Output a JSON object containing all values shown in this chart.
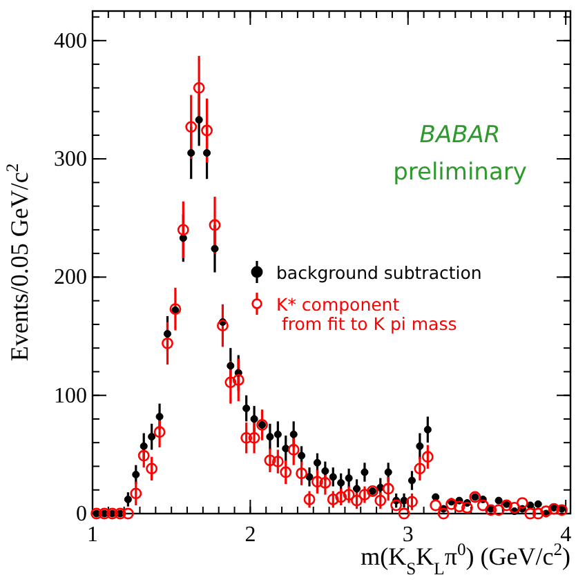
{
  "chart_data": {
    "type": "scatter",
    "xlabel": "m(K$_{S}$K$_{L}$π$^{0}$) (GeV/c$^{2}$)",
    "ylabel": "Events/0.05 GeV/c$^{2}$",
    "x": [
      1.025,
      1.075,
      1.125,
      1.175,
      1.225,
      1.275,
      1.325,
      1.375,
      1.425,
      1.475,
      1.525,
      1.575,
      1.625,
      1.675,
      1.725,
      1.775,
      1.825,
      1.875,
      1.925,
      1.975,
      2.025,
      2.075,
      2.125,
      2.175,
      2.225,
      2.275,
      2.325,
      2.375,
      2.425,
      2.475,
      2.525,
      2.575,
      2.625,
      2.675,
      2.725,
      2.775,
      2.825,
      2.875,
      2.925,
      2.975,
      3.025,
      3.075,
      3.125,
      3.175,
      3.225,
      3.275,
      3.325,
      3.375,
      3.425,
      3.475,
      3.525,
      3.575,
      3.625,
      3.675,
      3.725,
      3.775,
      3.825,
      3.875,
      3.925,
      3.975
    ],
    "series": [
      {
        "name": "background subtraction",
        "color": "#000000",
        "marker": "circle",
        "values": [
          0,
          0,
          0,
          0,
          12,
          33,
          57,
          65,
          82,
          152,
          172,
          233,
          305,
          333,
          305,
          224,
          162,
          125,
          119,
          89,
          80,
          75,
          65,
          67,
          55,
          67,
          49,
          31,
          43,
          36,
          31,
          26,
          30,
          21,
          35,
          19,
          22,
          35,
          11,
          11,
          28,
          57,
          71,
          14,
          4,
          10,
          11,
          9,
          14,
          12,
          4,
          11,
          8,
          2,
          4,
          7,
          8,
          0,
          5,
          4
        ],
        "errors": [
          null,
          null,
          null,
          null,
          6,
          8,
          11,
          11,
          11,
          15,
          null,
          20,
          22,
          22,
          22,
          20,
          null,
          15,
          15,
          11,
          11,
          null,
          11,
          11,
          11,
          11,
          8,
          8,
          8,
          8,
          8,
          8,
          8,
          8,
          8,
          null,
          8,
          8,
          6,
          6,
          8,
          11,
          11,
          null,
          null,
          null,
          null,
          null,
          null,
          null,
          null,
          null,
          null,
          null,
          null,
          null,
          null,
          null,
          null,
          null
        ]
      },
      {
        "name": "K* component\n from fit to K pi mass",
        "color": "#ff0000",
        "marker": "circle",
        "values": [
          0,
          0,
          0,
          0,
          0,
          17,
          49,
          38,
          69,
          144,
          173,
          240,
          327,
          360,
          324,
          244,
          159,
          111,
          113,
          64,
          64,
          75,
          45,
          44,
          35,
          54,
          34,
          12,
          27,
          26,
          12,
          14,
          16,
          11,
          16,
          19,
          11,
          21,
          7,
          0,
          10,
          38,
          48,
          7,
          0,
          8,
          6,
          5,
          14,
          7,
          3,
          3,
          7,
          5,
          9,
          0,
          0,
          2,
          4,
          3
        ],
        "errors": [
          null,
          null,
          null,
          null,
          null,
          10,
          10,
          10,
          13,
          18,
          18,
          24,
          27,
          27,
          27,
          24,
          18,
          18,
          18,
          13,
          13,
          13,
          10,
          10,
          10,
          13,
          10,
          7,
          10,
          10,
          7,
          7,
          7,
          7,
          7,
          null,
          7,
          10,
          null,
          null,
          7,
          10,
          10,
          null,
          null,
          null,
          null,
          null,
          null,
          null,
          null,
          null,
          null,
          null,
          null,
          null,
          null,
          null,
          null,
          null
        ]
      }
    ],
    "xlim": [
      1,
      4.03
    ],
    "ylim": [
      0,
      425
    ],
    "xticks": [
      1,
      2,
      3,
      4
    ],
    "yticks": [
      0,
      100,
      200,
      300,
      400
    ],
    "legend": "right",
    "grid": false,
    "annotations": [
      "BABAR",
      "preliminary"
    ]
  }
}
